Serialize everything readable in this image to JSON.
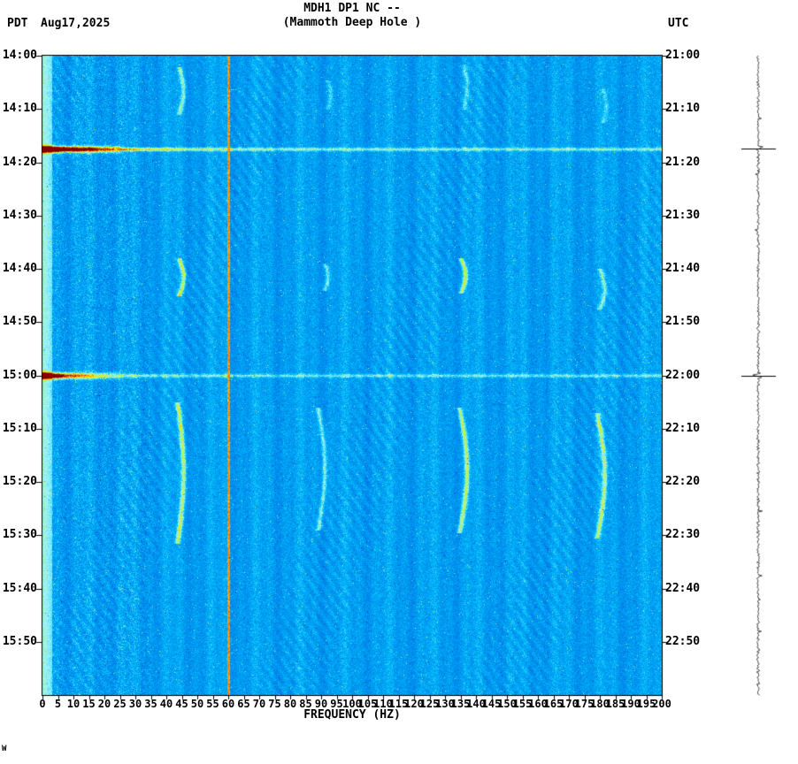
{
  "header": {
    "title_line1": "MDH1 DP1 NC --",
    "title_line2": "(Mammoth Deep Hole )",
    "left_tz": "PDT",
    "date": "Aug17,2025",
    "right_tz": "UTC"
  },
  "axes": {
    "x_label": "FREQUENCY (HZ)",
    "x_ticks": [
      0,
      5,
      10,
      15,
      20,
      25,
      30,
      35,
      40,
      45,
      50,
      55,
      60,
      65,
      70,
      75,
      80,
      85,
      90,
      95,
      100,
      105,
      110,
      115,
      120,
      125,
      130,
      135,
      140,
      145,
      150,
      155,
      160,
      165,
      170,
      175,
      180,
      185,
      190,
      195,
      200
    ],
    "pdt_labels": [
      "14:00",
      "14:10",
      "14:20",
      "14:30",
      "14:40",
      "14:50",
      "15:00",
      "15:10",
      "15:20",
      "15:30",
      "15:40",
      "15:50"
    ],
    "utc_labels": [
      "21:00",
      "21:10",
      "21:20",
      "21:30",
      "21:40",
      "21:50",
      "22:00",
      "22:10",
      "22:20",
      "22:30",
      "22:40",
      "22:50"
    ]
  },
  "footer": {
    "mark": "W"
  },
  "chart_data": {
    "type": "heatmap",
    "subtype": "spectrogram",
    "title": "MDH1 DP1 NC -- (Mammoth Deep Hole )",
    "station": "MDH1 DP1 NC",
    "station_name": "Mammoth Deep Hole",
    "xlabel": "FREQUENCY (HZ)",
    "x_axis": {
      "min_hz": 0,
      "max_hz": 200,
      "tick_step_hz": 5
    },
    "time_span": {
      "pdt_start": "14:00",
      "pdt_end": "16:00",
      "utc_start": "21:00",
      "utc_end": "23:00",
      "date": "Aug17,2025",
      "tick_minutes": 10
    },
    "legend_position": "none",
    "grid": false,
    "features": {
      "mains_line_hz": 60,
      "low_frequency_bright_band_hz": [
        0,
        3
      ],
      "harmonic_streak_frequencies_hz": [
        44,
        90,
        135,
        180
      ],
      "events": [
        {
          "pdt": "14:17",
          "utc": "21:17",
          "description": "broadband earthquake line, dark red below ~30 Hz fading to cyan at high frequency, red dot at 60 Hz"
        },
        {
          "pdt": "15:00",
          "utc": "22:00",
          "description": "broadband earthquake line, dark red below ~15 Hz fading to cyan at high frequency, red dot at 60 Hz"
        }
      ],
      "right_trace": {
        "type": "waveform",
        "description": "vertical amplitude trace with horizontal event marks",
        "events_marked_minutes": [
          17.5,
          60
        ]
      }
    },
    "colors": {
      "background_field": "#0096e6",
      "event_peak": "#8c0000",
      "mains_line": "#f05000",
      "frame": "#000000"
    },
    "render": {
      "seed": 12345,
      "trace_seed": 99,
      "colormap": [
        [
          0.0,
          0,
          0,
          130
        ],
        [
          0.15,
          0,
          50,
          190
        ],
        [
          0.3,
          0,
          110,
          225
        ],
        [
          0.42,
          0,
          150,
          240
        ],
        [
          0.5,
          0,
          185,
          250
        ],
        [
          0.57,
          60,
          220,
          255
        ],
        [
          0.63,
          170,
          245,
          252
        ],
        [
          0.68,
          140,
          240,
          150
        ],
        [
          0.74,
          200,
          248,
          70
        ],
        [
          0.8,
          250,
          230,
          0
        ],
        [
          0.86,
          255,
          160,
          0
        ],
        [
          0.92,
          240,
          70,
          0
        ],
        [
          1.0,
          130,
          0,
          0
        ]
      ],
      "events": [
        {
          "t": 17.5,
          "base": 0.2,
          "peak": 0.9,
          "falloff": 20
        },
        {
          "t": 60.0,
          "base": 0.17,
          "peak": 0.85,
          "falloff": 11
        }
      ],
      "chirps": [
        {
          "f": 44,
          "t0": 2,
          "t1": 11,
          "amp": 0.2,
          "bow": 1.5
        },
        {
          "f": 92,
          "t0": 4.5,
          "t1": 10,
          "amp": 0.12,
          "bow": 1.0
        },
        {
          "f": 136,
          "t0": 1.5,
          "t1": 10,
          "amp": 0.12,
          "bow": 1.0
        },
        {
          "f": 181,
          "t0": 6,
          "t1": 12.5,
          "amp": 0.12,
          "bow": 1.0
        },
        {
          "f": 44,
          "t0": 38,
          "t1": 45,
          "amp": 0.3,
          "bow": 1.5
        },
        {
          "f": 91,
          "t0": 39,
          "t1": 44,
          "amp": 0.18,
          "bow": 1.0
        },
        {
          "f": 135,
          "t0": 38,
          "t1": 44.5,
          "amp": 0.28,
          "bow": 1.5
        },
        {
          "f": 180,
          "t0": 40,
          "t1": 47.5,
          "amp": 0.18,
          "bow": 1.5
        },
        {
          "f": 43.5,
          "t0": 65,
          "t1": 91.5,
          "amp": 0.28,
          "bow": 2.0
        },
        {
          "f": 89,
          "t0": 66,
          "t1": 89,
          "amp": 0.22,
          "bow": 2.0
        },
        {
          "f": 134.5,
          "t0": 66,
          "t1": 89.5,
          "amp": 0.28,
          "bow": 2.5
        },
        {
          "f": 179,
          "t0": 67,
          "t1": 90.5,
          "amp": 0.26,
          "bow": 2.5
        }
      ]
    }
  }
}
